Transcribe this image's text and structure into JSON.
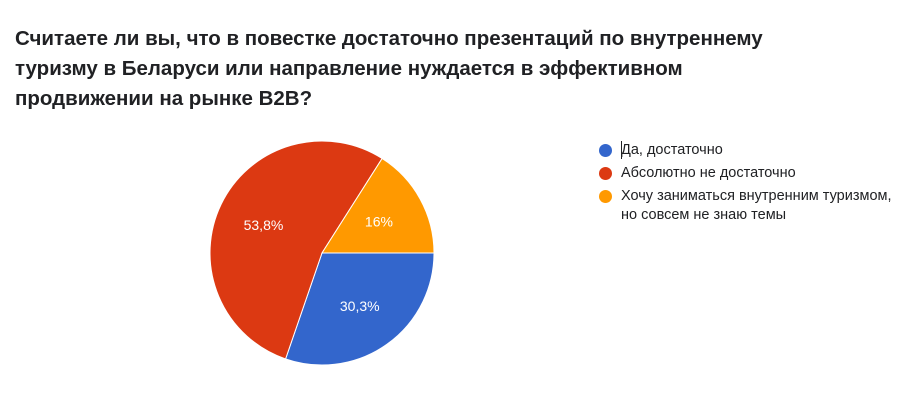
{
  "title_lines": [
    "Считаете ли вы, что в повестке достаточно презентаций по внутреннему",
    "туризму в Беларуси или направление нуждается в эффективном",
    "продвижении на рынке B2B?"
  ],
  "legend": [
    {
      "label": "Да, достаточно",
      "color": "#3366cc"
    },
    {
      "label": "Абсолютно не достаточно",
      "color": "#dc3912"
    },
    {
      "label": "Хочу заниматься внутренним туризмом, но совсем не знаю темы",
      "color": "#ff9900"
    }
  ],
  "chart_data": {
    "type": "pie",
    "title": "Считаете ли вы, что в повестке достаточно презентаций по внутреннему туризму в Беларуси или направление нуждается в эффективном продвижении на рынке B2B?",
    "categories": [
      "Да, достаточно",
      "Абсолютно не достаточно",
      "Хочу заниматься внутренним туризмом, но совсем не знаю темы"
    ],
    "values": [
      30.3,
      53.8,
      16
    ],
    "value_labels": [
      "30,3%",
      "53,8%",
      "16%"
    ],
    "colors": [
      "#3366cc",
      "#dc3912",
      "#ff9900"
    ],
    "legend_position": "right"
  }
}
